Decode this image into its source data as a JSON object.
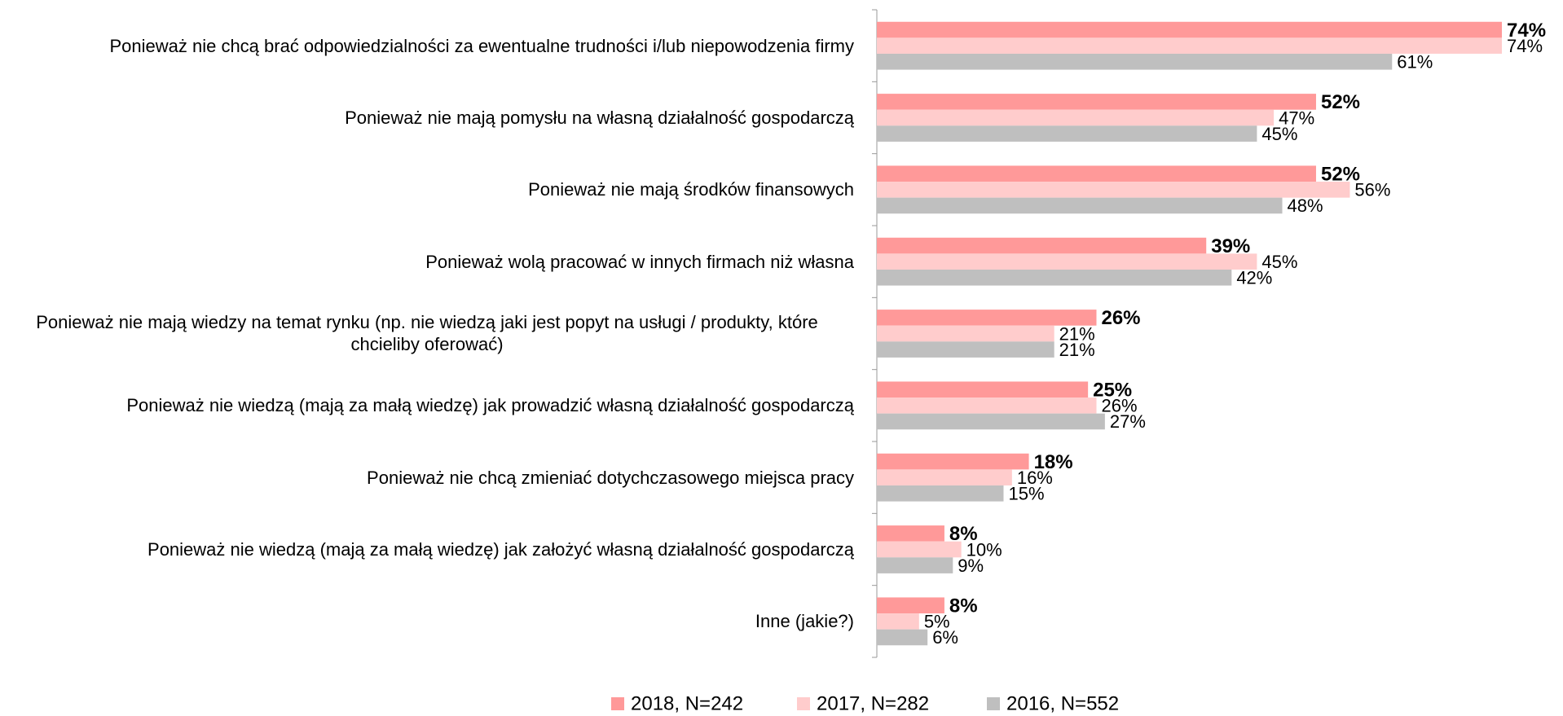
{
  "chart_data": {
    "type": "bar",
    "orientation": "horizontal",
    "categories": [
      "Ponieważ nie chcą brać odpowiedzialności za ewentualne trudności i/lub niepowodzenia firmy",
      "Ponieważ nie mają pomysłu na własną działalność gospodarczą",
      "Ponieważ nie mają środków finansowych",
      "Ponieważ wolą pracować w innych firmach niż własna",
      "Ponieważ nie mają wiedzy na temat rynku (np. nie wiedzą jaki jest popyt na usługi / produkty, które chcieliby oferować)",
      "Ponieważ nie wiedzą (mają za małą wiedzę)  jak prowadzić własną działalność gospodarczą",
      "Ponieważ nie chcą zmieniać dotychczasowego miejsca pracy",
      "Ponieważ nie wiedzą (mają za małą wiedzę) jak założyć własną działalność gospodarczą",
      "Inne (jakie?)"
    ],
    "series": [
      {
        "name": "2018, N=242",
        "color": "#ff9999",
        "bold_labels": true,
        "values": [
          74,
          52,
          52,
          39,
          26,
          25,
          18,
          8,
          8
        ],
        "value_labels": [
          "74%",
          "52%",
          "52%",
          "39%",
          "26%",
          "25%",
          "18%",
          "8%",
          "8%"
        ]
      },
      {
        "name": "2017, N=282",
        "color": "#ffcccc",
        "values": [
          74,
          47,
          56,
          45,
          21,
          26,
          16,
          10,
          5
        ],
        "value_labels": [
          "74%",
          "47%",
          "56%",
          "45%",
          "21%",
          "26%",
          "16%",
          "10%",
          "5%"
        ]
      },
      {
        "name": "2016, N=552",
        "color": "#bfbfbf",
        "values": [
          61,
          45,
          48,
          42,
          21,
          27,
          15,
          9,
          6
        ],
        "value_labels": [
          "61%",
          "45%",
          "48%",
          "42%",
          "21%",
          "27%",
          "15%",
          "9%",
          "6%"
        ]
      }
    ],
    "legend": "bottom"
  }
}
